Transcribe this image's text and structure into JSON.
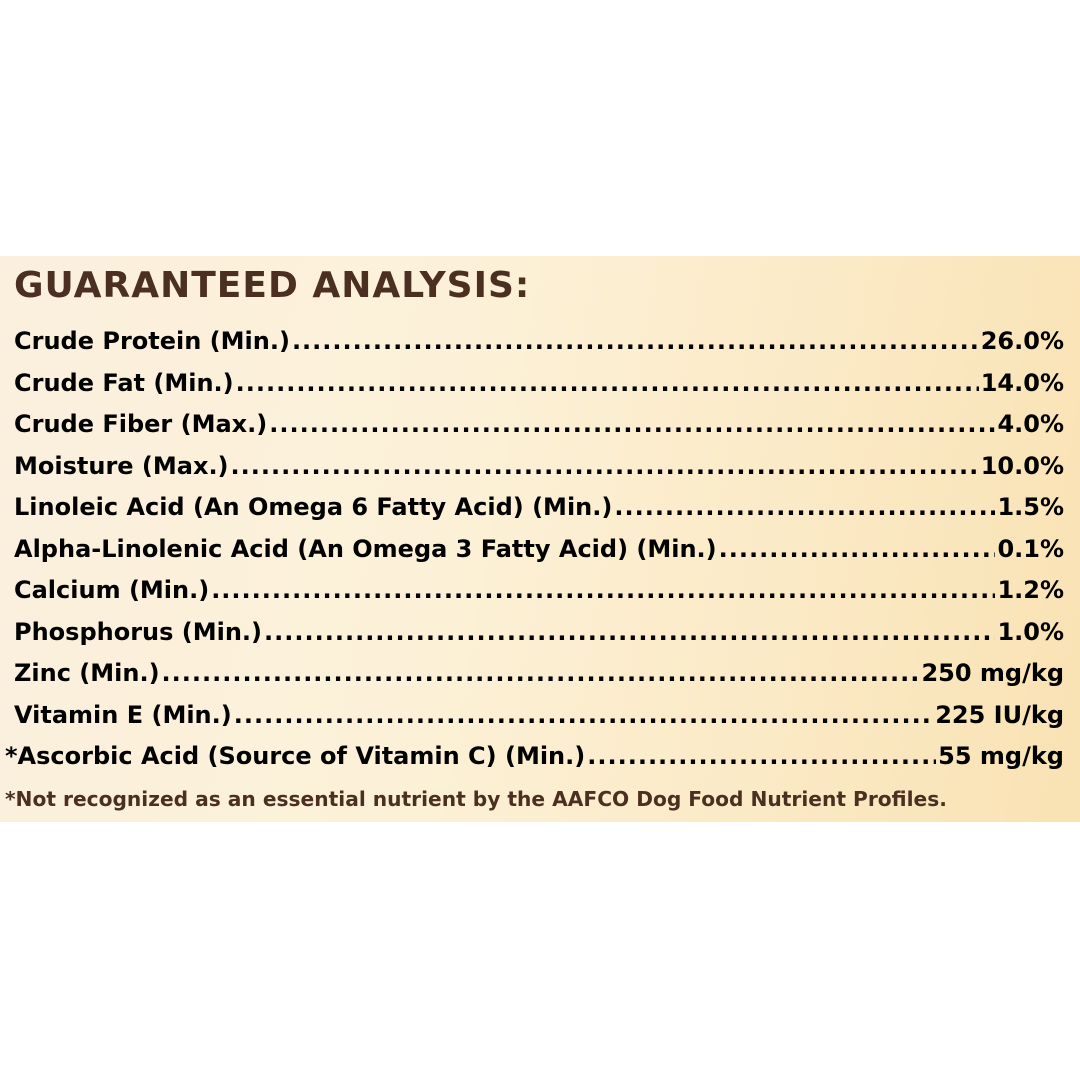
{
  "title": "GUARANTEED ANALYSIS:",
  "rows": [
    {
      "label": "Crude Protein (Min.)",
      "value": "26.0%"
    },
    {
      "label": "Crude Fat (Min.)",
      "value": "14.0%"
    },
    {
      "label": "Crude Fiber (Max.)",
      "value": "4.0%"
    },
    {
      "label": "Moisture (Max.)",
      "value": "10.0%"
    },
    {
      "label": "Linoleic Acid (An Omega 6 Fatty Acid) (Min.)",
      "value": "1.5%"
    },
    {
      "label": "Alpha-Linolenic Acid (An Omega 3 Fatty Acid) (Min.)",
      "value": "0.1%"
    },
    {
      "label": "Calcium (Min.)",
      "value": "1.2%"
    },
    {
      "label": "Phosphorus (Min.)",
      "value": "1.0%"
    },
    {
      "label": "Zinc (Min.)",
      "value": "250 mg/kg"
    },
    {
      "label": "Vitamin E (Min.)",
      "value": "225 IU/kg"
    },
    {
      "label": "*Ascorbic Acid (Source of Vitamin C) (Min.)",
      "value": "55 mg/kg"
    }
  ],
  "footnote": "*Not recognized as an essential nutrient by the AAFCO Dog Food Nutrient Profiles.",
  "colors": {
    "text": "#4b3021",
    "background": "#fbeccb"
  }
}
